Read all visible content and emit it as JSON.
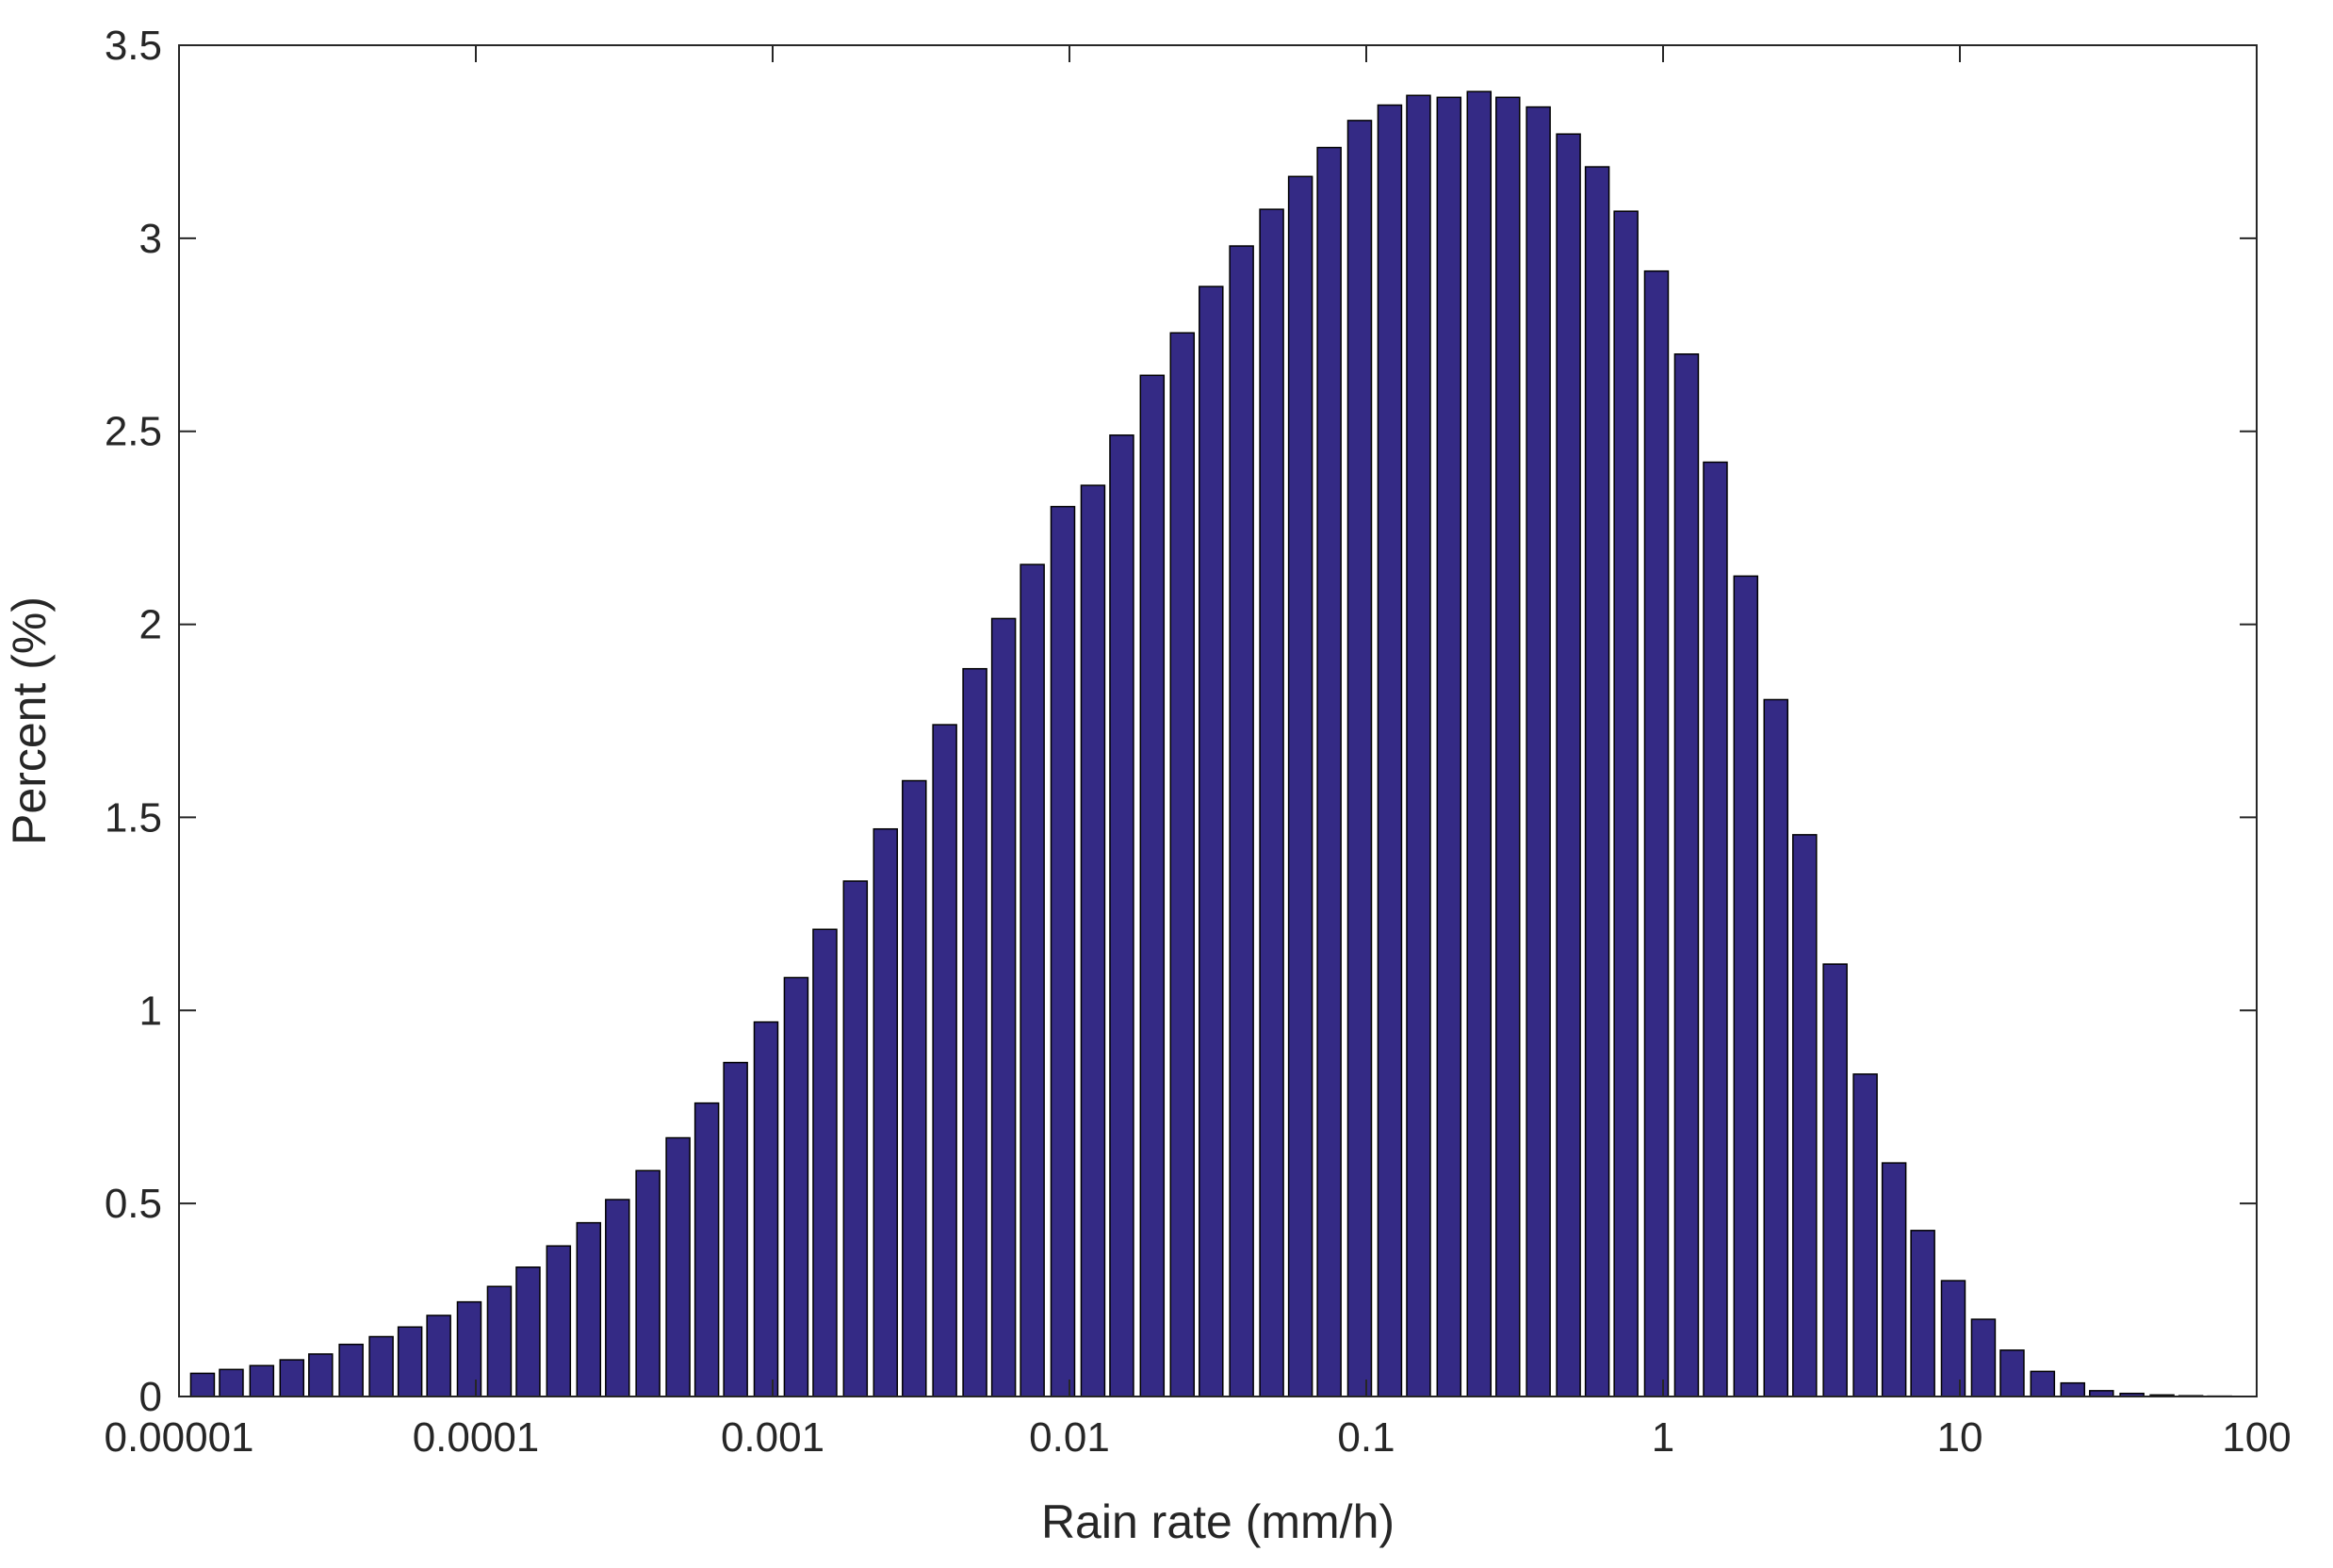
{
  "chart_data": {
    "type": "bar",
    "title": "",
    "xlabel": "Rain rate (mm/h)",
    "ylabel": "Percent (%)",
    "x_scale": "log",
    "xlim": [
      1e-05,
      100
    ],
    "ylim": [
      0,
      3.5
    ],
    "x_ticks": [
      1e-05,
      0.0001,
      0.001,
      0.01,
      0.1,
      1,
      10,
      100
    ],
    "x_tick_labels": [
      "0.00001",
      "0.0001",
      "0.001",
      "0.01",
      "0.1",
      "1",
      "10",
      "100"
    ],
    "y_ticks": [
      0,
      0.5,
      1,
      1.5,
      2,
      2.5,
      3,
      3.5
    ],
    "y_tick_labels": [
      "0",
      "0.5",
      "1",
      "1.5",
      "2",
      "2.5",
      "3",
      "3.5"
    ],
    "grid": false,
    "bar_color": "#342a85",
    "bar_edge_color": "#000000",
    "x": [
      1.2e-05,
      1.5e-05,
      1.9e-05,
      2.4e-05,
      3e-05,
      3.8e-05,
      4.8e-05,
      6e-05,
      7.5e-05,
      9.5e-05,
      0.00012,
      0.00015,
      0.00019,
      0.00024,
      0.0003,
      0.00038,
      0.00048,
      0.0006,
      0.00075,
      0.00095,
      0.0012,
      0.0015,
      0.0019,
      0.0024,
      0.003,
      0.0038,
      0.0048,
      0.006,
      0.0075,
      0.0095,
      0.012,
      0.015,
      0.019,
      0.024,
      0.03,
      0.038,
      0.048,
      0.06,
      0.075,
      0.095,
      0.12,
      0.15,
      0.19,
      0.24,
      0.3,
      0.38,
      0.48,
      0.6,
      0.75,
      0.95,
      1.2,
      1.5,
      1.9,
      2.4,
      3,
      3.8,
      4.8,
      6,
      7.5,
      9.5,
      12,
      15,
      19,
      24,
      30,
      38,
      48,
      60,
      75
    ],
    "values": [
      0.06,
      0.07,
      0.08,
      0.095,
      0.11,
      0.135,
      0.155,
      0.18,
      0.21,
      0.245,
      0.285,
      0.335,
      0.39,
      0.45,
      0.51,
      0.585,
      0.67,
      0.76,
      0.865,
      0.97,
      1.085,
      1.21,
      1.335,
      1.47,
      1.595,
      1.74,
      1.885,
      2.015,
      2.155,
      2.305,
      2.36,
      2.49,
      2.645,
      2.755,
      2.875,
      2.98,
      3.075,
      3.16,
      3.235,
      3.305,
      3.345,
      3.37,
      3.365,
      3.38,
      3.365,
      3.34,
      3.27,
      3.185,
      3.07,
      2.915,
      2.7,
      2.42,
      2.125,
      1.805,
      1.455,
      1.12,
      0.835,
      0.605,
      0.43,
      0.3,
      0.2,
      0.12,
      0.065,
      0.035,
      0.015,
      0.008,
      0.004,
      0.002,
      0.001
    ]
  }
}
